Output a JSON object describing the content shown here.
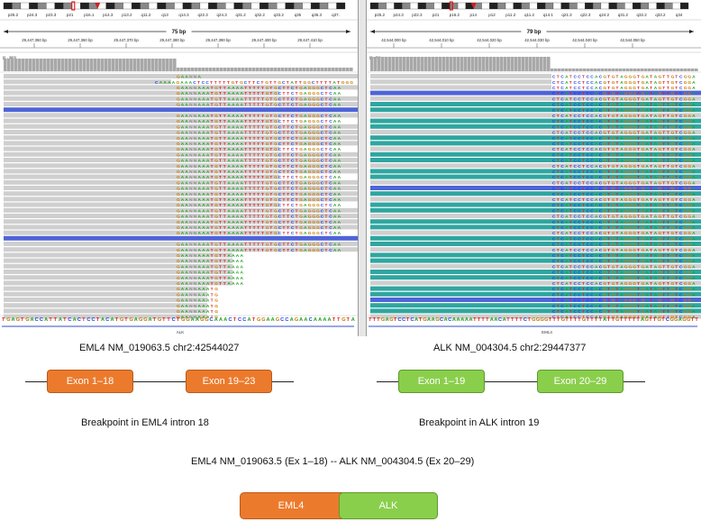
{
  "left_panel": {
    "cytobands": [
      "p25.2",
      "p24.3",
      "p23.3",
      "p21",
      "p16.1",
      "p14.3",
      "p13.2",
      "q11.2",
      "q13",
      "q14.3",
      "q22.3",
      "q24.3",
      "q31.2",
      "q32.2",
      "q33.2",
      "q35",
      "q36.3",
      "q37."
    ],
    "span_label": "75 bp",
    "ruler_ticks": [
      "29,447,350 bp",
      "29,447,360 bp",
      "29,447,370 bp",
      "29,447,380 bp",
      "29,447,390 bp",
      "29,447,400 bp",
      "29,447,410 bp"
    ],
    "coverage_label": "[0 - 383]",
    "reference_sequence": "TGAGTGACCATTATCACTCCTACATGTGAGGATGTTCTGGAAGGCAAACTCCATGGAAGCCAGAACAAAATTGTA",
    "gene_label": "ALK",
    "split_read_sequence": "GAANNAAATGTTAAAATTTTTGTGCTTCTGAGGGCTCAA",
    "upstream_read_sequence": "CAAAAGAAACTCCTTTTTGTGCTTCTGTTGCTATTGGCTTTTATGGGGCT"
  },
  "right_panel": {
    "cytobands": [
      "p25.2",
      "p24.3",
      "p22.3",
      "p21",
      "p16.2",
      "p14",
      "p12",
      "p11.2",
      "q11.2",
      "q14.1",
      "q21.3",
      "q22.3",
      "q24.2",
      "q31.2",
      "q32.2",
      "q33.2",
      "q34"
    ],
    "span_label": "79 bp",
    "ruler_ticks": [
      "42,544,000 bp",
      "42,544,010 bp",
      "42,544,020 bp",
      "42,544,030 bp",
      "42,544,040 bp",
      "42,544,050 bp"
    ],
    "coverage_label": "[0 - 21]",
    "reference_sequence": "TTTGAGTCCTCATGAAGCACAAAAATTTTAACATTTTCTGGGGTTTGTTTTGTTTTATTGTTTTTAGTTGTCGGAGGTTTAGTTT",
    "gene_label": "EML4",
    "split_read_sequence": "CTCATCCTCCACGTGTAGGGTGATAGTTGTCGGAGGTTTAGTT"
  },
  "eml4": {
    "title": "EML4 NM_019063.5 chr2:42544027",
    "exon_a": "Exon 1–18",
    "exon_b": "Exon 19–23",
    "breakpoint": "Breakpoint in EML4 intron 18",
    "color": "#ec7a2c"
  },
  "alk": {
    "title": "ALK NM_004304.5 chr2:29447377",
    "exon_a": "Exon 1–19",
    "exon_b": "Exon 20–29",
    "breakpoint": "Breakpoint in ALK intron 19",
    "color": "#8acf4c"
  },
  "fusion": {
    "title": "EML4 NM_019063.5 (Ex 1–18) -- ALK NM_004304.5 (Ex 20–29)",
    "part_a": "EML4",
    "part_b": "ALK"
  }
}
